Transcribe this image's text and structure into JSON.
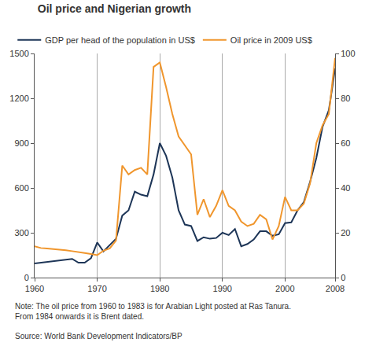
{
  "chart_data": {
    "type": "line",
    "title": "Oil price and Nigerian growth",
    "note": "Note: The oil price from 1960 to 1983 is for Arabian Light posted at Ras Tanura. From 1984 onwards it is Brent dated.",
    "source": "Source: World Bank Development Indicators/BP",
    "x": [
      1960,
      1961,
      1962,
      1963,
      1964,
      1965,
      1966,
      1967,
      1968,
      1969,
      1970,
      1971,
      1972,
      1973,
      1974,
      1975,
      1976,
      1977,
      1978,
      1979,
      1980,
      1981,
      1982,
      1983,
      1984,
      1985,
      1986,
      1987,
      1988,
      1989,
      1990,
      1991,
      1992,
      1993,
      1994,
      1995,
      1996,
      1997,
      1998,
      1999,
      2000,
      2001,
      2002,
      2003,
      2004,
      2005,
      2006,
      2007,
      2008
    ],
    "series": [
      {
        "name": "GDP per head of the population in US$",
        "color": "#1d3557",
        "values": [
          95,
          100,
          105,
          110,
          115,
          120,
          125,
          100,
          100,
          130,
          235,
          175,
          215,
          260,
          415,
          450,
          575,
          555,
          545,
          690,
          900,
          815,
          670,
          450,
          355,
          345,
          245,
          270,
          260,
          265,
          300,
          285,
          325,
          210,
          225,
          255,
          310,
          310,
          280,
          290,
          365,
          370,
          450,
          505,
          640,
          800,
          1010,
          1120,
          1400
        ]
      },
      {
        "name": "Oil price in 2009 US$",
        "color": "#f0962d",
        "axis": "y2",
        "values": [
          14,
          13.2,
          13,
          12.8,
          12.5,
          12.2,
          11.8,
          11.5,
          11,
          10.5,
          10,
          12,
          13,
          16.5,
          50,
          46,
          48,
          49,
          46,
          94,
          96,
          85,
          73,
          63,
          59,
          55,
          28,
          35,
          27,
          32,
          39,
          32,
          30,
          25,
          23,
          24,
          28,
          26,
          17,
          23,
          36,
          30,
          30,
          33,
          42,
          60,
          68,
          73,
          98
        ]
      }
    ],
    "xlim": [
      1960,
      2008
    ],
    "xticks": [
      1960,
      1970,
      1980,
      1990,
      2000,
      2008
    ],
    "ylim": [
      0,
      1500
    ],
    "yticks": [
      0,
      300,
      600,
      900,
      1200,
      1500
    ],
    "y2lim": [
      0,
      100
    ],
    "y2ticks": [
      0,
      20,
      40,
      60,
      80,
      100
    ],
    "grid": true,
    "legend": "top left"
  }
}
